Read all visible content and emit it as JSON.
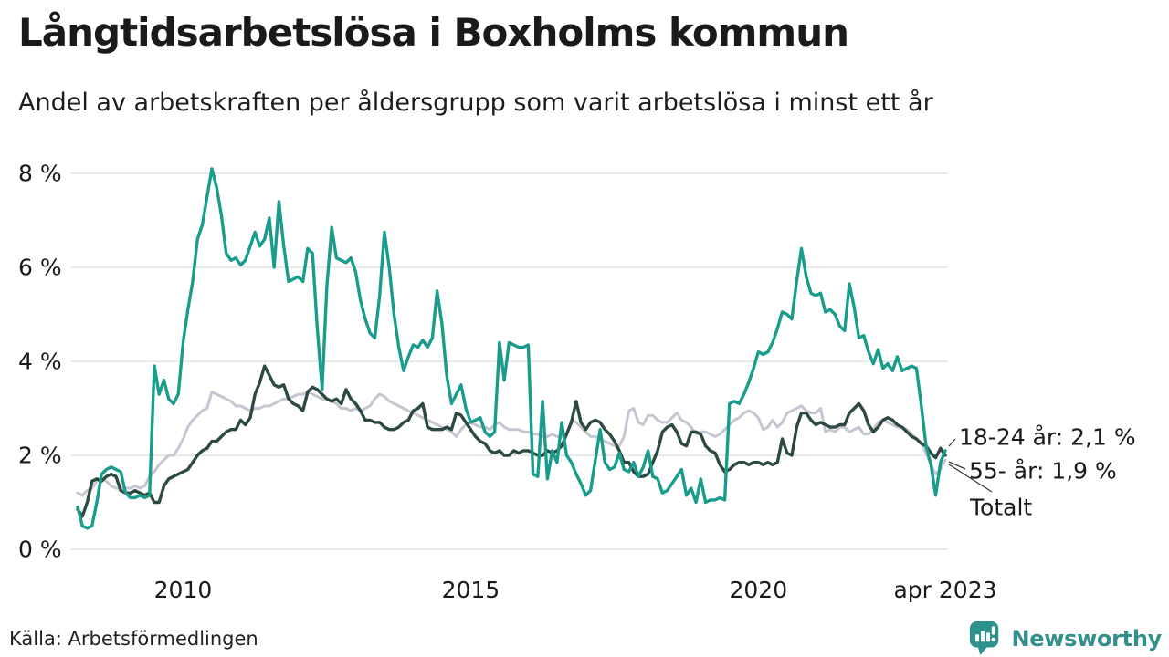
{
  "page": {
    "title": "Långtidsarbetslösa i Boxholms kommun",
    "subtitle": "Andel av arbetskraften per åldersgrupp som varit arbetslösa i minst ett år",
    "source": "Källa: Arbetsförmedlingen",
    "branding": {
      "name": "Newsworthy",
      "color": "#2f918b"
    }
  },
  "chart_data": {
    "type": "line",
    "title": "Långtidsarbetslösa i Boxholms kommun",
    "subtitle": "Andel av arbetskraften per åldersgrupp som varit arbetslösa i minst ett år",
    "x_unit": "month",
    "x_range": [
      "2008-03",
      "2023-04"
    ],
    "ylim": [
      0,
      8.5
    ],
    "grid": "horizontal",
    "legend": "end-of-line-labels",
    "y_ticks": [
      {
        "value": 8,
        "label": "8 %"
      },
      {
        "value": 6,
        "label": "6 %"
      },
      {
        "value": 4,
        "label": "4 %"
      },
      {
        "value": 2,
        "label": "2 %"
      },
      {
        "value": 0,
        "label": "0 %"
      }
    ],
    "x_ticks": [
      {
        "index": 22,
        "label": "2010"
      },
      {
        "index": 82,
        "label": "2015"
      },
      {
        "index": 142,
        "label": "2020"
      },
      {
        "index": 181,
        "label": "apr 2023"
      }
    ],
    "series": [
      {
        "name": "18-24 år",
        "color": "#1a9c8c",
        "end_label": "18-24 år: 2,1 %",
        "last_value": 2.1,
        "values": [
          0.9,
          0.5,
          0.45,
          0.5,
          1.0,
          1.6,
          1.7,
          1.75,
          1.7,
          1.65,
          1.2,
          1.1,
          1.1,
          1.15,
          1.1,
          1.15,
          3.9,
          3.3,
          3.6,
          3.2,
          3.1,
          3.3,
          4.4,
          5.1,
          5.7,
          6.6,
          6.9,
          7.5,
          8.1,
          7.7,
          7.1,
          6.3,
          6.15,
          6.2,
          6.05,
          6.15,
          6.45,
          6.75,
          6.45,
          6.6,
          7.05,
          6.0,
          7.4,
          6.45,
          5.7,
          5.75,
          5.8,
          5.7,
          6.4,
          6.3,
          4.7,
          3.4,
          5.6,
          6.85,
          6.2,
          6.15,
          6.1,
          6.2,
          5.9,
          5.3,
          4.9,
          4.6,
          4.5,
          5.4,
          6.75,
          6.0,
          5.0,
          4.3,
          3.8,
          4.1,
          4.35,
          4.3,
          4.45,
          4.3,
          4.5,
          5.5,
          4.8,
          3.7,
          3.1,
          3.3,
          3.5,
          3.0,
          2.7,
          2.75,
          2.8,
          2.5,
          2.4,
          2.5,
          4.4,
          3.6,
          4.4,
          4.35,
          4.3,
          4.3,
          4.35,
          1.6,
          1.55,
          3.15,
          1.5,
          2.1,
          1.85,
          2.7,
          2.0,
          1.85,
          1.6,
          1.4,
          1.15,
          1.25,
          1.9,
          2.55,
          1.85,
          1.7,
          1.75,
          2.05,
          1.7,
          1.65,
          1.85,
          1.55,
          1.75,
          2.1,
          1.55,
          1.5,
          1.2,
          1.25,
          1.4,
          1.55,
          1.7,
          1.15,
          1.3,
          1.0,
          1.5,
          1.0,
          1.05,
          1.05,
          1.1,
          1.05,
          3.1,
          3.15,
          3.1,
          3.3,
          3.55,
          3.85,
          4.2,
          4.15,
          4.2,
          4.4,
          4.7,
          5.05,
          5.0,
          4.9,
          5.7,
          6.4,
          5.8,
          5.45,
          5.4,
          5.45,
          5.05,
          5.1,
          5.0,
          4.75,
          4.65,
          5.65,
          5.15,
          4.5,
          4.55,
          4.2,
          3.95,
          4.25,
          3.85,
          3.95,
          3.8,
          4.1,
          3.8,
          3.85,
          3.9,
          3.85,
          3.05,
          2.2,
          1.8,
          1.15,
          1.85,
          2.1
        ]
      },
      {
        "name": "55- år",
        "color": "#c6c5d2",
        "end_label": "55- år: 1,9 %",
        "last_value": 1.9,
        "values": [
          1.2,
          1.15,
          1.25,
          1.3,
          1.45,
          1.5,
          1.45,
          1.35,
          1.3,
          1.3,
          1.3,
          1.3,
          1.35,
          1.3,
          1.35,
          1.55,
          1.65,
          1.8,
          1.9,
          2.0,
          2.0,
          2.15,
          2.35,
          2.6,
          2.75,
          2.85,
          2.95,
          3.0,
          3.35,
          3.3,
          3.25,
          3.2,
          3.15,
          3.05,
          3.05,
          3.0,
          2.95,
          3.0,
          3.0,
          3.05,
          3.05,
          3.1,
          3.15,
          3.2,
          3.2,
          3.25,
          3.3,
          3.3,
          3.35,
          3.3,
          3.25,
          3.2,
          3.2,
          3.15,
          3.1,
          3.0,
          3.0,
          2.95,
          3.0,
          2.95,
          3.0,
          3.05,
          3.2,
          3.3,
          3.25,
          3.15,
          3.1,
          3.05,
          3.0,
          2.95,
          2.9,
          2.85,
          2.8,
          2.75,
          2.7,
          2.65,
          2.6,
          2.55,
          2.5,
          2.4,
          2.55,
          2.65,
          2.7,
          2.65,
          2.6,
          2.6,
          2.55,
          2.65,
          2.7,
          2.6,
          2.55,
          2.55,
          2.55,
          2.5,
          2.5,
          2.45,
          2.45,
          2.4,
          2.4,
          2.45,
          2.4,
          2.4,
          2.45,
          2.75,
          2.7,
          2.6,
          2.5,
          2.4,
          2.4,
          2.35,
          2.3,
          2.25,
          2.2,
          2.2,
          2.4,
          2.95,
          3.0,
          2.7,
          2.65,
          2.85,
          2.85,
          2.75,
          2.7,
          2.7,
          2.8,
          2.9,
          2.75,
          2.7,
          2.6,
          2.45,
          2.5,
          2.5,
          2.45,
          2.4,
          2.45,
          2.55,
          2.65,
          2.75,
          2.8,
          2.9,
          2.95,
          2.9,
          2.8,
          2.55,
          2.6,
          2.75,
          2.6,
          2.7,
          2.9,
          2.95,
          3.0,
          3.05,
          2.95,
          2.9,
          2.9,
          3.0,
          2.5,
          2.55,
          2.5,
          2.6,
          2.6,
          2.5,
          2.55,
          2.6,
          2.45,
          2.45,
          2.55,
          2.7,
          2.75,
          2.7,
          2.65,
          2.6,
          2.6,
          2.55,
          2.45,
          2.35,
          2.25,
          2.05,
          1.8,
          1.6,
          1.7,
          1.9
        ]
      },
      {
        "name": "Totalt",
        "color": "#2c4a41",
        "end_label": "Totalt",
        "last_value": 2.0,
        "values": [
          0.85,
          0.7,
          1.0,
          1.45,
          1.5,
          1.45,
          1.55,
          1.6,
          1.55,
          1.25,
          1.2,
          1.2,
          1.25,
          1.2,
          1.15,
          1.2,
          1.0,
          1.0,
          1.35,
          1.5,
          1.55,
          1.6,
          1.65,
          1.7,
          1.85,
          2.0,
          2.1,
          2.15,
          2.3,
          2.3,
          2.4,
          2.5,
          2.55,
          2.55,
          2.75,
          2.65,
          2.8,
          3.3,
          3.55,
          3.9,
          3.7,
          3.5,
          3.45,
          3.5,
          3.2,
          3.1,
          3.05,
          2.95,
          3.35,
          3.45,
          3.4,
          3.3,
          3.2,
          3.15,
          3.2,
          3.1,
          3.4,
          3.2,
          3.1,
          2.95,
          2.75,
          2.75,
          2.7,
          2.7,
          2.6,
          2.55,
          2.55,
          2.6,
          2.7,
          2.75,
          2.95,
          3.0,
          3.1,
          2.6,
          2.55,
          2.55,
          2.55,
          2.6,
          2.55,
          2.9,
          2.85,
          2.7,
          2.55,
          2.4,
          2.3,
          2.25,
          2.1,
          2.05,
          2.1,
          2.0,
          2.0,
          2.1,
          2.05,
          2.1,
          2.1,
          2.05,
          2.0,
          2.0,
          2.1,
          2.05,
          2.1,
          2.2,
          2.45,
          2.7,
          3.15,
          2.7,
          2.55,
          2.7,
          2.75,
          2.7,
          2.55,
          2.45,
          2.3,
          2.1,
          1.85,
          1.85,
          1.65,
          1.55,
          1.55,
          1.6,
          1.85,
          2.1,
          2.5,
          2.6,
          2.65,
          2.5,
          2.25,
          2.2,
          2.5,
          2.5,
          2.45,
          2.2,
          2.1,
          2.05,
          1.8,
          1.65,
          1.7,
          1.8,
          1.85,
          1.85,
          1.8,
          1.85,
          1.85,
          1.8,
          1.85,
          1.8,
          1.85,
          2.35,
          2.05,
          2.0,
          2.6,
          2.9,
          2.9,
          2.75,
          2.65,
          2.7,
          2.65,
          2.6,
          2.6,
          2.65,
          2.65,
          2.9,
          3.0,
          3.1,
          2.95,
          2.65,
          2.5,
          2.6,
          2.75,
          2.8,
          2.75,
          2.65,
          2.6,
          2.5,
          2.4,
          2.35,
          2.25,
          2.2,
          2.05,
          1.95,
          2.15,
          2.0
        ]
      }
    ]
  }
}
